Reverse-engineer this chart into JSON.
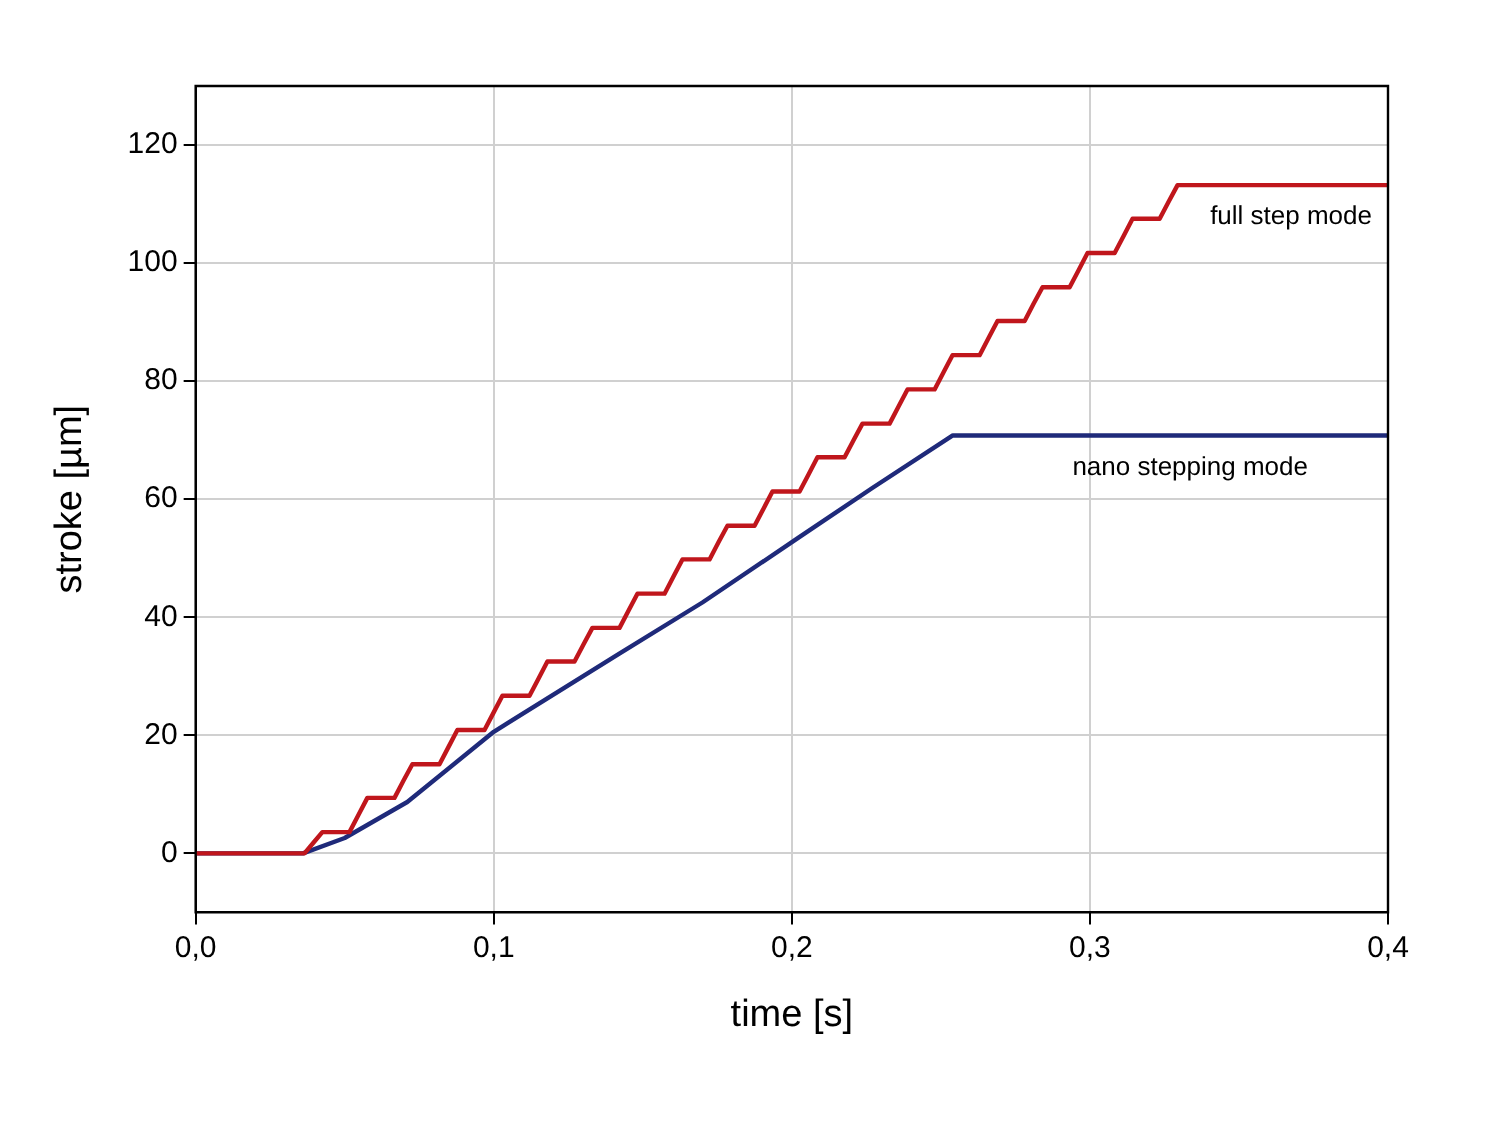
{
  "chart_data": {
    "type": "line",
    "xlabel": "time [s]",
    "ylabel": "stroke [µm]",
    "xlim": [
      0,
      0.4
    ],
    "ylim": [
      -10,
      130
    ],
    "xticks": [
      {
        "value": 0,
        "label": "0,0"
      },
      {
        "value": 0.1,
        "label": "0,1"
      },
      {
        "value": 0.2,
        "label": "0,2"
      },
      {
        "value": 0.3,
        "label": "0,3"
      },
      {
        "value": 0.4,
        "label": "0,4"
      }
    ],
    "yticks": [
      0,
      20,
      40,
      60,
      80,
      100,
      120
    ],
    "grid": true,
    "legend": false,
    "marker": "none",
    "line_style": "solid",
    "series": [
      {
        "name": "full step mode",
        "color": "#c0161c",
        "x": [
          0,
          0.0365,
          0.0395,
          0.0425,
          0.0516,
          0.0546,
          0.0576,
          0.0667,
          0.0697,
          0.0727,
          0.0818,
          0.0848,
          0.0878,
          0.0969,
          0.0999,
          0.1029,
          0.112,
          0.115,
          0.118,
          0.1271,
          0.1301,
          0.1331,
          0.1422,
          0.1452,
          0.1482,
          0.1573,
          0.1603,
          0.1633,
          0.1724,
          0.1754,
          0.1784,
          0.1875,
          0.1905,
          0.1935,
          0.2026,
          0.2056,
          0.2086,
          0.2177,
          0.2207,
          0.2237,
          0.2328,
          0.2358,
          0.2388,
          0.2479,
          0.2509,
          0.2539,
          0.263,
          0.266,
          0.269,
          0.2781,
          0.2811,
          0.2841,
          0.2932,
          0.2962,
          0.2992,
          0.3083,
          0.3113,
          0.3143,
          0.3234,
          0.3264,
          0.3294,
          0.4
        ],
        "values": [
          0,
          0,
          1.8,
          3.6,
          3.6,
          6.5,
          9.4,
          9.4,
          12.3,
          15.1,
          15.1,
          18,
          20.9,
          20.9,
          23.8,
          26.7,
          26.7,
          29.6,
          32.5,
          32.5,
          35.4,
          38.2,
          38.2,
          41.1,
          44,
          44,
          46.9,
          49.8,
          49.8,
          52.7,
          55.5,
          55.5,
          58.4,
          61.3,
          61.3,
          64.2,
          67.1,
          67.1,
          70,
          72.8,
          72.8,
          75.7,
          78.6,
          78.6,
          81.5,
          84.4,
          84.4,
          87.3,
          90.2,
          90.2,
          93.1,
          95.9,
          95.9,
          98.8,
          101.7,
          101.7,
          104.6,
          107.5,
          107.5,
          110.4,
          113.2,
          113.2
        ]
      },
      {
        "name": "nano stepping mode",
        "color": "#1f2a7a",
        "x": [
          0,
          0.036,
          0.05,
          0.071,
          0.1,
          0.142,
          0.17,
          0.202,
          0.227,
          0.254,
          0.4
        ],
        "values": [
          0,
          0,
          2.6,
          8.7,
          20.6,
          33.8,
          42.5,
          53.4,
          61.9,
          70.8,
          70.8
        ]
      }
    ]
  }
}
